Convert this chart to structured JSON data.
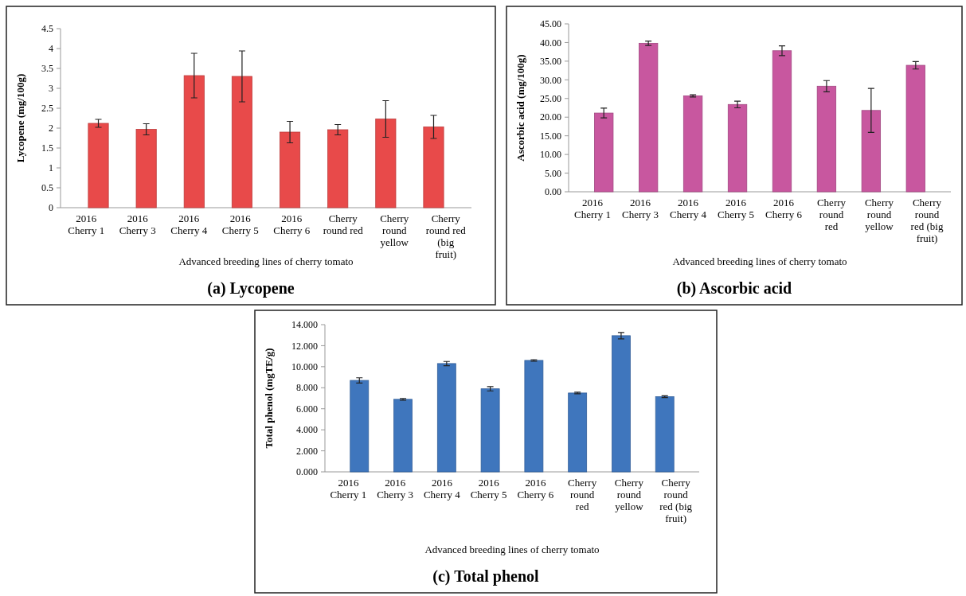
{
  "chart_data": [
    {
      "type": "bar",
      "title": "(a) Lycopene",
      "xlabel": "Advanced breeding lines of cherry tomato",
      "ylabel": "Lycopene (mg/100g)",
      "categories": [
        "2016 Cherry 1",
        "2016 Cherry 3",
        "2016 Cherry 4",
        "2016 Cherry 5",
        "2016 Cherry 6",
        "Cherry round red",
        "Cherry round yellow",
        "Cherry round red (big fruit)"
      ],
      "series": [
        {
          "color": "#e84a4a",
          "values": [
            2.12,
            1.97,
            3.32,
            3.3,
            1.9,
            1.96,
            2.23,
            2.03
          ],
          "errors": [
            0.1,
            0.14,
            0.56,
            0.64,
            0.27,
            0.13,
            0.46,
            0.29
          ]
        }
      ],
      "ylim": [
        0,
        4.5
      ],
      "yticks": [
        0,
        0.5,
        1,
        1.5,
        2,
        2.5,
        3,
        3.5,
        4,
        4.5
      ],
      "grid": false
    },
    {
      "type": "bar",
      "title": "(b) Ascorbic acid",
      "xlabel": "Advanced breeding lines of cherry tomato",
      "ylabel": "Ascorbic acid (mg/100g)",
      "categories": [
        "2016 Cherry 1",
        "2016 Cherry 3",
        "2016 Cherry 4",
        "2016 Cherry 5",
        "2016 Cherry 6",
        "Cherry round red",
        "Cherry round yellow",
        "Cherry round red (big fruit)"
      ],
      "series": [
        {
          "color": "#c8579f",
          "values": [
            21.1,
            39.8,
            25.7,
            23.4,
            37.8,
            28.3,
            21.8,
            33.9
          ],
          "errors": [
            1.3,
            0.6,
            0.3,
            0.9,
            1.3,
            1.5,
            5.9,
            1.0
          ]
        }
      ],
      "ylim": [
        0,
        45
      ],
      "yticks": [
        {
          "value": 0,
          "label": "0.00"
        },
        {
          "value": 5,
          "label": "5.00"
        },
        {
          "value": 10,
          "label": "10.00"
        },
        {
          "value": 15,
          "label": "15.00"
        },
        {
          "value": 20,
          "label": "20.00"
        },
        {
          "value": 25,
          "label": "25.00"
        },
        {
          "value": 30,
          "label": "30.00"
        },
        {
          "value": 35,
          "label": "35.00"
        },
        {
          "value": 40,
          "label": "40.00"
        },
        {
          "value": 45,
          "label": "45.00"
        }
      ],
      "grid": false
    },
    {
      "type": "bar",
      "title": "(c) Total phenol",
      "xlabel": "Advanced breeding lines of cherry tomato",
      "ylabel": "Total phenol (mgTE/g)",
      "categories": [
        "2016 Cherry 1",
        "2016 Cherry 3",
        "2016 Cherry 4",
        "2016 Cherry 5",
        "2016 Cherry 6",
        "Cherry round red",
        "Cherry round yellow",
        "Cherry round red (big fruit)"
      ],
      "series": [
        {
          "color": "#3f76bd",
          "values": [
            8.7,
            6.9,
            10.3,
            7.9,
            10.6,
            7.5,
            12.95,
            7.15
          ],
          "errors": [
            0.25,
            0.08,
            0.2,
            0.2,
            0.07,
            0.07,
            0.3,
            0.08
          ]
        }
      ],
      "ylim": [
        0,
        14
      ],
      "yticks": [
        {
          "value": 0,
          "label": "0.000"
        },
        {
          "value": 2,
          "label": "2.000"
        },
        {
          "value": 4,
          "label": "4.000"
        },
        {
          "value": 6,
          "label": "6.000"
        },
        {
          "value": 8,
          "label": "8.000"
        },
        {
          "value": 10,
          "label": "10.000"
        },
        {
          "value": 12,
          "label": "12.000"
        },
        {
          "value": 14,
          "label": "14.000"
        }
      ],
      "grid": false
    }
  ]
}
